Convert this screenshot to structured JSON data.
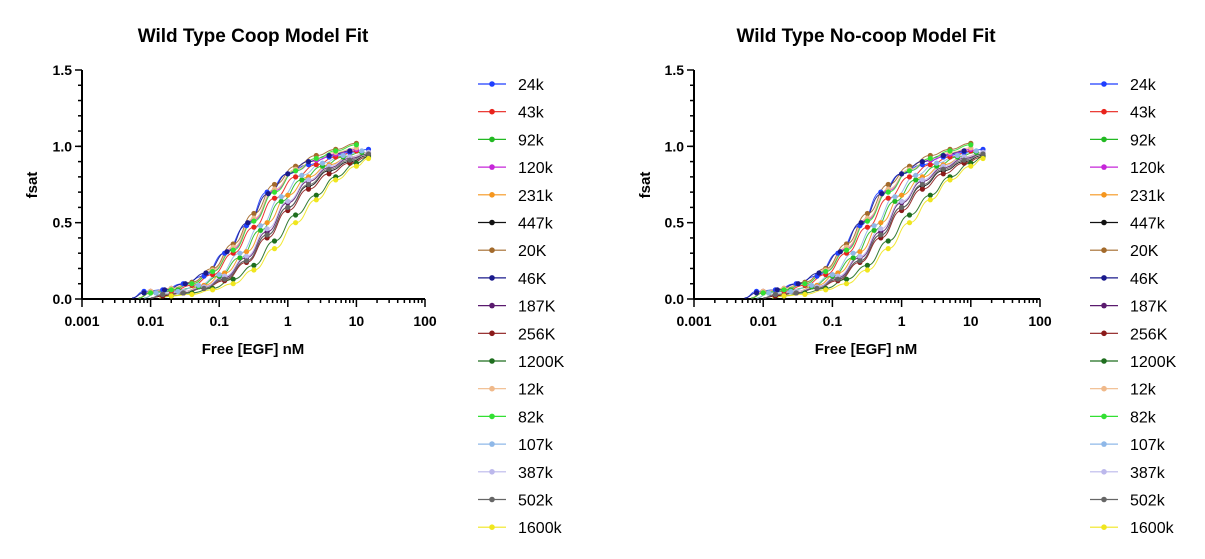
{
  "chart_data": [
    {
      "type": "scatter",
      "title": "Wild Type Coop Model Fit",
      "xlabel": "Free [EGF] nM",
      "ylabel": "fsat",
      "xscale": "log",
      "xlim": [
        0.001,
        100
      ],
      "ylim": [
        0,
        1.5
      ],
      "xticks": [
        0.001,
        0.01,
        0.1,
        1,
        10,
        100
      ],
      "xtick_labels": [
        "0.001",
        "0.01",
        "0.1",
        "1",
        "10",
        "100"
      ],
      "yticks": [
        0,
        0.5,
        1.0,
        1.5
      ],
      "ytick_labels": [
        "0.0",
        "0.5",
        "1.0",
        "1.5"
      ],
      "fit": "sigmoidal fit curve per series",
      "legend_position": "right",
      "series": [
        {
          "name": "24k",
          "color": "#1f3fff",
          "x": [
            0.008,
            0.015,
            0.03,
            0.06,
            0.12,
            0.25,
            0.5,
            1,
            2,
            4,
            8,
            15
          ],
          "y": [
            0.05,
            0.06,
            0.1,
            0.15,
            0.3,
            0.48,
            0.7,
            0.82,
            0.88,
            0.93,
            0.96,
            0.98
          ]
        },
        {
          "name": "43k",
          "color": "#e8231c",
          "x": [
            0.01,
            0.02,
            0.04,
            0.08,
            0.16,
            0.32,
            0.64,
            1.3,
            2.6,
            5,
            10
          ],
          "y": [
            0.04,
            0.05,
            0.09,
            0.16,
            0.3,
            0.47,
            0.66,
            0.8,
            0.88,
            0.93,
            0.97
          ]
        },
        {
          "name": "92k",
          "color": "#22b922",
          "x": [
            0.012,
            0.025,
            0.05,
            0.1,
            0.2,
            0.4,
            0.8,
            1.6,
            3.2,
            6.4,
            12
          ],
          "y": [
            0.04,
            0.06,
            0.08,
            0.15,
            0.27,
            0.45,
            0.64,
            0.78,
            0.87,
            0.93,
            0.96
          ]
        },
        {
          "name": "120k",
          "color": "#c626d9",
          "x": [
            0.01,
            0.02,
            0.04,
            0.08,
            0.16,
            0.32,
            0.64,
            1.3,
            2.6,
            5,
            10
          ],
          "y": [
            0.05,
            0.06,
            0.1,
            0.18,
            0.33,
            0.52,
            0.71,
            0.84,
            0.91,
            0.95,
            0.98
          ]
        },
        {
          "name": "231k",
          "color": "#f5961e",
          "x": [
            0.015,
            0.03,
            0.06,
            0.12,
            0.25,
            0.5,
            1,
            2,
            4,
            8,
            15
          ],
          "y": [
            0.03,
            0.05,
            0.09,
            0.17,
            0.31,
            0.5,
            0.68,
            0.8,
            0.88,
            0.93,
            0.96
          ]
        },
        {
          "name": "447k",
          "color": "#111111",
          "x": [
            0.015,
            0.03,
            0.06,
            0.12,
            0.25,
            0.5,
            1,
            2,
            4,
            8,
            15
          ],
          "y": [
            0.02,
            0.04,
            0.07,
            0.13,
            0.25,
            0.42,
            0.6,
            0.74,
            0.84,
            0.9,
            0.94
          ]
        },
        {
          "name": "20K",
          "color": "#a36a2b",
          "x": [
            0.01,
            0.02,
            0.04,
            0.08,
            0.16,
            0.32,
            0.64,
            1.3,
            2.6,
            5,
            10
          ],
          "y": [
            0.05,
            0.07,
            0.11,
            0.2,
            0.36,
            0.56,
            0.75,
            0.87,
            0.94,
            0.98,
            1.02
          ]
        },
        {
          "name": "46K",
          "color": "#1a1a8c",
          "x": [
            0.008,
            0.016,
            0.032,
            0.064,
            0.13,
            0.26,
            0.52,
            1,
            2,
            4,
            8
          ],
          "y": [
            0.04,
            0.06,
            0.1,
            0.17,
            0.31,
            0.5,
            0.69,
            0.82,
            0.9,
            0.94,
            0.97
          ]
        },
        {
          "name": "187K",
          "color": "#5a1a6e",
          "x": [
            0.015,
            0.03,
            0.06,
            0.12,
            0.25,
            0.5,
            1,
            2,
            4,
            8,
            15
          ],
          "y": [
            0.03,
            0.04,
            0.08,
            0.14,
            0.27,
            0.44,
            0.63,
            0.77,
            0.86,
            0.92,
            0.95
          ]
        },
        {
          "name": "256K",
          "color": "#8b1a1a",
          "x": [
            0.015,
            0.03,
            0.06,
            0.12,
            0.25,
            0.5,
            1,
            2,
            4,
            8,
            15
          ],
          "y": [
            0.02,
            0.04,
            0.07,
            0.12,
            0.24,
            0.4,
            0.58,
            0.72,
            0.82,
            0.89,
            0.93
          ]
        },
        {
          "name": "1200K",
          "color": "#1f6e1f",
          "x": [
            0.02,
            0.04,
            0.08,
            0.16,
            0.32,
            0.64,
            1.3,
            2.6,
            5,
            10,
            15
          ],
          "y": [
            0.02,
            0.04,
            0.07,
            0.13,
            0.22,
            0.38,
            0.55,
            0.68,
            0.8,
            0.89,
            0.93
          ]
        },
        {
          "name": "12k",
          "color": "#f0b98a",
          "x": [
            0.01,
            0.02,
            0.04,
            0.08,
            0.16,
            0.32,
            0.64,
            1.3,
            2.6,
            5,
            10
          ],
          "y": [
            0.05,
            0.07,
            0.1,
            0.19,
            0.34,
            0.53,
            0.72,
            0.85,
            0.92,
            0.96,
            0.99
          ]
        },
        {
          "name": "82k",
          "color": "#33e033",
          "x": [
            0.01,
            0.02,
            0.04,
            0.08,
            0.16,
            0.32,
            0.64,
            1.3,
            2.6,
            5,
            10
          ],
          "y": [
            0.04,
            0.06,
            0.1,
            0.18,
            0.32,
            0.51,
            0.7,
            0.84,
            0.92,
            0.97,
            1.01
          ]
        },
        {
          "name": "107k",
          "color": "#8fb8e8",
          "x": [
            0.012,
            0.025,
            0.05,
            0.1,
            0.2,
            0.4,
            0.8,
            1.6,
            3.2,
            6.4,
            12
          ],
          "y": [
            0.04,
            0.05,
            0.09,
            0.16,
            0.3,
            0.48,
            0.67,
            0.81,
            0.89,
            0.94,
            0.97
          ]
        },
        {
          "name": "387k",
          "color": "#bcb8ec",
          "x": [
            0.015,
            0.03,
            0.06,
            0.12,
            0.25,
            0.5,
            1,
            2,
            4,
            8,
            15
          ],
          "y": [
            0.03,
            0.05,
            0.08,
            0.15,
            0.28,
            0.46,
            0.64,
            0.78,
            0.87,
            0.93,
            0.96
          ]
        },
        {
          "name": "502k",
          "color": "#666666",
          "x": [
            0.015,
            0.03,
            0.06,
            0.12,
            0.25,
            0.5,
            1,
            2,
            4,
            8,
            15
          ],
          "y": [
            0.03,
            0.04,
            0.07,
            0.13,
            0.25,
            0.42,
            0.6,
            0.75,
            0.85,
            0.91,
            0.95
          ]
        },
        {
          "name": "1600k",
          "color": "#f0e61e",
          "x": [
            0.02,
            0.04,
            0.08,
            0.16,
            0.32,
            0.64,
            1.3,
            2.6,
            5,
            10,
            15
          ],
          "y": [
            0.02,
            0.03,
            0.06,
            0.1,
            0.19,
            0.33,
            0.5,
            0.65,
            0.78,
            0.87,
            0.92
          ]
        }
      ]
    },
    {
      "type": "scatter",
      "title": "Wild Type No-coop Model Fit",
      "xlabel": "Free [EGF] nM",
      "ylabel": "fsat",
      "xscale": "log",
      "xlim": [
        0.001,
        100
      ],
      "ylim": [
        0,
        1.5
      ],
      "xticks": [
        0.001,
        0.01,
        0.1,
        1,
        10,
        100
      ],
      "xtick_labels": [
        "0.001",
        "0.01",
        "0.1",
        "1",
        "10",
        "100"
      ],
      "yticks": [
        0,
        0.5,
        1.0,
        1.5
      ],
      "ytick_labels": [
        "0.0",
        "0.5",
        "1.0",
        "1.5"
      ],
      "fit": "sigmoidal fit curve per series",
      "legend_position": "right",
      "series": [
        {
          "name": "24k",
          "color": "#1f3fff",
          "x": [
            0.008,
            0.015,
            0.03,
            0.06,
            0.12,
            0.25,
            0.5,
            1,
            2,
            4,
            8,
            15
          ],
          "y": [
            0.05,
            0.06,
            0.1,
            0.15,
            0.3,
            0.48,
            0.7,
            0.82,
            0.88,
            0.93,
            0.96,
            0.98
          ]
        },
        {
          "name": "43k",
          "color": "#e8231c",
          "x": [
            0.01,
            0.02,
            0.04,
            0.08,
            0.16,
            0.32,
            0.64,
            1.3,
            2.6,
            5,
            10
          ],
          "y": [
            0.04,
            0.05,
            0.09,
            0.16,
            0.3,
            0.47,
            0.66,
            0.8,
            0.88,
            0.93,
            0.97
          ]
        },
        {
          "name": "92k",
          "color": "#22b922",
          "x": [
            0.012,
            0.025,
            0.05,
            0.1,
            0.2,
            0.4,
            0.8,
            1.6,
            3.2,
            6.4,
            12
          ],
          "y": [
            0.04,
            0.06,
            0.08,
            0.15,
            0.27,
            0.45,
            0.64,
            0.78,
            0.87,
            0.93,
            0.96
          ]
        },
        {
          "name": "120k",
          "color": "#c626d9",
          "x": [
            0.01,
            0.02,
            0.04,
            0.08,
            0.16,
            0.32,
            0.64,
            1.3,
            2.6,
            5,
            10
          ],
          "y": [
            0.05,
            0.06,
            0.1,
            0.18,
            0.33,
            0.52,
            0.71,
            0.84,
            0.91,
            0.95,
            0.98
          ]
        },
        {
          "name": "231k",
          "color": "#f5961e",
          "x": [
            0.015,
            0.03,
            0.06,
            0.12,
            0.25,
            0.5,
            1,
            2,
            4,
            8,
            15
          ],
          "y": [
            0.03,
            0.05,
            0.09,
            0.17,
            0.31,
            0.5,
            0.68,
            0.8,
            0.88,
            0.93,
            0.96
          ]
        },
        {
          "name": "447k",
          "color": "#111111",
          "x": [
            0.015,
            0.03,
            0.06,
            0.12,
            0.25,
            0.5,
            1,
            2,
            4,
            8,
            15
          ],
          "y": [
            0.02,
            0.04,
            0.07,
            0.13,
            0.25,
            0.42,
            0.6,
            0.74,
            0.84,
            0.9,
            0.94
          ]
        },
        {
          "name": "20K",
          "color": "#a36a2b",
          "x": [
            0.01,
            0.02,
            0.04,
            0.08,
            0.16,
            0.32,
            0.64,
            1.3,
            2.6,
            5,
            10
          ],
          "y": [
            0.05,
            0.07,
            0.11,
            0.2,
            0.36,
            0.56,
            0.75,
            0.87,
            0.94,
            0.98,
            1.02
          ]
        },
        {
          "name": "46K",
          "color": "#1a1a8c",
          "x": [
            0.008,
            0.016,
            0.032,
            0.064,
            0.13,
            0.26,
            0.52,
            1,
            2,
            4,
            8
          ],
          "y": [
            0.04,
            0.06,
            0.1,
            0.17,
            0.31,
            0.5,
            0.69,
            0.82,
            0.9,
            0.94,
            0.97
          ]
        },
        {
          "name": "187K",
          "color": "#5a1a6e",
          "x": [
            0.015,
            0.03,
            0.06,
            0.12,
            0.25,
            0.5,
            1,
            2,
            4,
            8,
            15
          ],
          "y": [
            0.03,
            0.04,
            0.08,
            0.14,
            0.27,
            0.44,
            0.63,
            0.77,
            0.86,
            0.92,
            0.95
          ]
        },
        {
          "name": "256K",
          "color": "#8b1a1a",
          "x": [
            0.015,
            0.03,
            0.06,
            0.12,
            0.25,
            0.5,
            1,
            2,
            4,
            8,
            15
          ],
          "y": [
            0.02,
            0.04,
            0.07,
            0.12,
            0.24,
            0.4,
            0.58,
            0.72,
            0.82,
            0.89,
            0.93
          ]
        },
        {
          "name": "1200K",
          "color": "#1f6e1f",
          "x": [
            0.02,
            0.04,
            0.08,
            0.16,
            0.32,
            0.64,
            1.3,
            2.6,
            5,
            10,
            15
          ],
          "y": [
            0.02,
            0.04,
            0.07,
            0.13,
            0.22,
            0.38,
            0.55,
            0.68,
            0.8,
            0.89,
            0.93
          ]
        },
        {
          "name": "12k",
          "color": "#f0b98a",
          "x": [
            0.01,
            0.02,
            0.04,
            0.08,
            0.16,
            0.32,
            0.64,
            1.3,
            2.6,
            5,
            10
          ],
          "y": [
            0.05,
            0.07,
            0.1,
            0.19,
            0.34,
            0.53,
            0.72,
            0.85,
            0.92,
            0.96,
            0.99
          ]
        },
        {
          "name": "82k",
          "color": "#33e033",
          "x": [
            0.01,
            0.02,
            0.04,
            0.08,
            0.16,
            0.32,
            0.64,
            1.3,
            2.6,
            5,
            10
          ],
          "y": [
            0.04,
            0.06,
            0.1,
            0.18,
            0.32,
            0.51,
            0.7,
            0.84,
            0.92,
            0.97,
            1.01
          ]
        },
        {
          "name": "107k",
          "color": "#8fb8e8",
          "x": [
            0.012,
            0.025,
            0.05,
            0.1,
            0.2,
            0.4,
            0.8,
            1.6,
            3.2,
            6.4,
            12
          ],
          "y": [
            0.04,
            0.05,
            0.09,
            0.16,
            0.3,
            0.48,
            0.67,
            0.81,
            0.89,
            0.94,
            0.97
          ]
        },
        {
          "name": "387k",
          "color": "#bcb8ec",
          "x": [
            0.015,
            0.03,
            0.06,
            0.12,
            0.25,
            0.5,
            1,
            2,
            4,
            8,
            15
          ],
          "y": [
            0.03,
            0.05,
            0.08,
            0.15,
            0.28,
            0.46,
            0.64,
            0.78,
            0.87,
            0.93,
            0.96
          ]
        },
        {
          "name": "502k",
          "color": "#666666",
          "x": [
            0.015,
            0.03,
            0.06,
            0.12,
            0.25,
            0.5,
            1,
            2,
            4,
            8,
            15
          ],
          "y": [
            0.03,
            0.04,
            0.07,
            0.13,
            0.25,
            0.42,
            0.6,
            0.75,
            0.85,
            0.91,
            0.95
          ]
        },
        {
          "name": "1600k",
          "color": "#f0e61e",
          "x": [
            0.02,
            0.04,
            0.08,
            0.16,
            0.32,
            0.64,
            1.3,
            2.6,
            5,
            10,
            15
          ],
          "y": [
            0.02,
            0.03,
            0.06,
            0.1,
            0.19,
            0.33,
            0.5,
            0.65,
            0.78,
            0.87,
            0.92
          ]
        }
      ]
    }
  ]
}
